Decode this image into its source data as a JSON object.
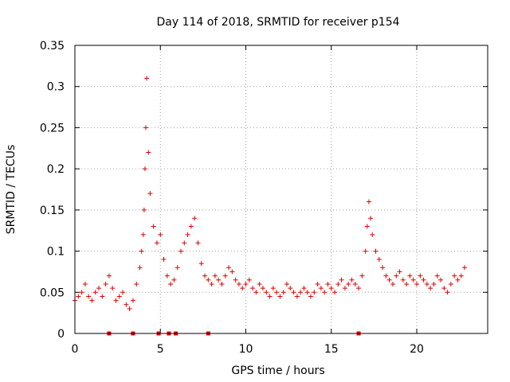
{
  "chart_data": {
    "type": "scatter",
    "title": "Day 114 of 2018, SRMTID for receiver p154",
    "xlabel": "GPS time / hours",
    "ylabel": "SRMTID / TECUs",
    "xlim": [
      0,
      24.15
    ],
    "ylim": [
      0,
      0.35
    ],
    "x_ticks": [
      0,
      5,
      10,
      15,
      20
    ],
    "x_tick_labels": [
      "0",
      "5",
      "10",
      "15",
      "20"
    ],
    "y_ticks": [
      0,
      0.05,
      0.1,
      0.15,
      0.2,
      0.25,
      0.3,
      0.35
    ],
    "y_tick_labels": [
      "0",
      "0.05",
      "0.1",
      "0.15",
      "0.2",
      "0.25",
      "0.3",
      "0.35"
    ],
    "grid": true,
    "marker": "plus",
    "color": "#e00000",
    "series": [
      {
        "name": "SRMTID",
        "x": [
          0.0,
          0.2,
          0.4,
          0.6,
          0.8,
          1.0,
          1.2,
          1.4,
          1.6,
          1.8,
          2.0,
          2.2,
          2.4,
          2.6,
          2.8,
          3.0,
          3.2,
          3.4,
          3.6,
          3.8,
          3.9,
          4.0,
          4.05,
          4.1,
          4.15,
          4.2,
          4.3,
          4.4,
          4.6,
          4.8,
          5.0,
          5.2,
          5.4,
          5.6,
          5.8,
          6.0,
          6.2,
          6.4,
          6.6,
          6.8,
          7.0,
          7.2,
          7.4,
          7.6,
          7.8,
          8.0,
          8.2,
          8.4,
          8.6,
          8.8,
          9.0,
          9.2,
          9.4,
          9.6,
          9.8,
          10.0,
          10.2,
          10.4,
          10.6,
          10.8,
          11.0,
          11.2,
          11.4,
          11.6,
          11.8,
          12.0,
          12.2,
          12.4,
          12.6,
          12.8,
          13.0,
          13.2,
          13.4,
          13.6,
          13.8,
          14.0,
          14.2,
          14.4,
          14.6,
          14.8,
          15.0,
          15.2,
          15.4,
          15.6,
          15.8,
          16.0,
          16.2,
          16.4,
          16.6,
          16.8,
          17.0,
          17.1,
          17.2,
          17.3,
          17.4,
          17.6,
          17.8,
          18.0,
          18.2,
          18.4,
          18.6,
          18.8,
          19.0,
          19.2,
          19.4,
          19.6,
          19.8,
          20.0,
          20.2,
          20.4,
          20.6,
          20.8,
          21.0,
          21.2,
          21.4,
          21.6,
          21.8,
          22.0,
          22.2,
          22.4,
          22.6,
          22.8
        ],
        "y": [
          0.04,
          0.045,
          0.05,
          0.06,
          0.045,
          0.04,
          0.05,
          0.055,
          0.045,
          0.06,
          0.07,
          0.055,
          0.04,
          0.045,
          0.05,
          0.035,
          0.03,
          0.04,
          0.06,
          0.08,
          0.1,
          0.12,
          0.15,
          0.2,
          0.25,
          0.31,
          0.22,
          0.17,
          0.13,
          0.11,
          0.12,
          0.09,
          0.07,
          0.06,
          0.065,
          0.08,
          0.1,
          0.11,
          0.12,
          0.13,
          0.14,
          0.11,
          0.085,
          0.07,
          0.065,
          0.06,
          0.07,
          0.065,
          0.06,
          0.07,
          0.08,
          0.075,
          0.065,
          0.06,
          0.055,
          0.06,
          0.065,
          0.055,
          0.05,
          0.06,
          0.055,
          0.05,
          0.045,
          0.055,
          0.05,
          0.045,
          0.05,
          0.06,
          0.055,
          0.05,
          0.045,
          0.05,
          0.055,
          0.05,
          0.045,
          0.05,
          0.06,
          0.055,
          0.05,
          0.06,
          0.055,
          0.05,
          0.06,
          0.065,
          0.055,
          0.06,
          0.065,
          0.06,
          0.055,
          0.07,
          0.1,
          0.13,
          0.16,
          0.14,
          0.12,
          0.1,
          0.09,
          0.08,
          0.07,
          0.065,
          0.06,
          0.07,
          0.075,
          0.065,
          0.06,
          0.07,
          0.065,
          0.06,
          0.07,
          0.065,
          0.06,
          0.055,
          0.06,
          0.07,
          0.065,
          0.055,
          0.05,
          0.06,
          0.07,
          0.065,
          0.07,
          0.08
        ]
      }
    ],
    "zero_markers_x": [
      2.0,
      3.4,
      4.9,
      5.5,
      5.9,
      7.8,
      16.6
    ]
  }
}
